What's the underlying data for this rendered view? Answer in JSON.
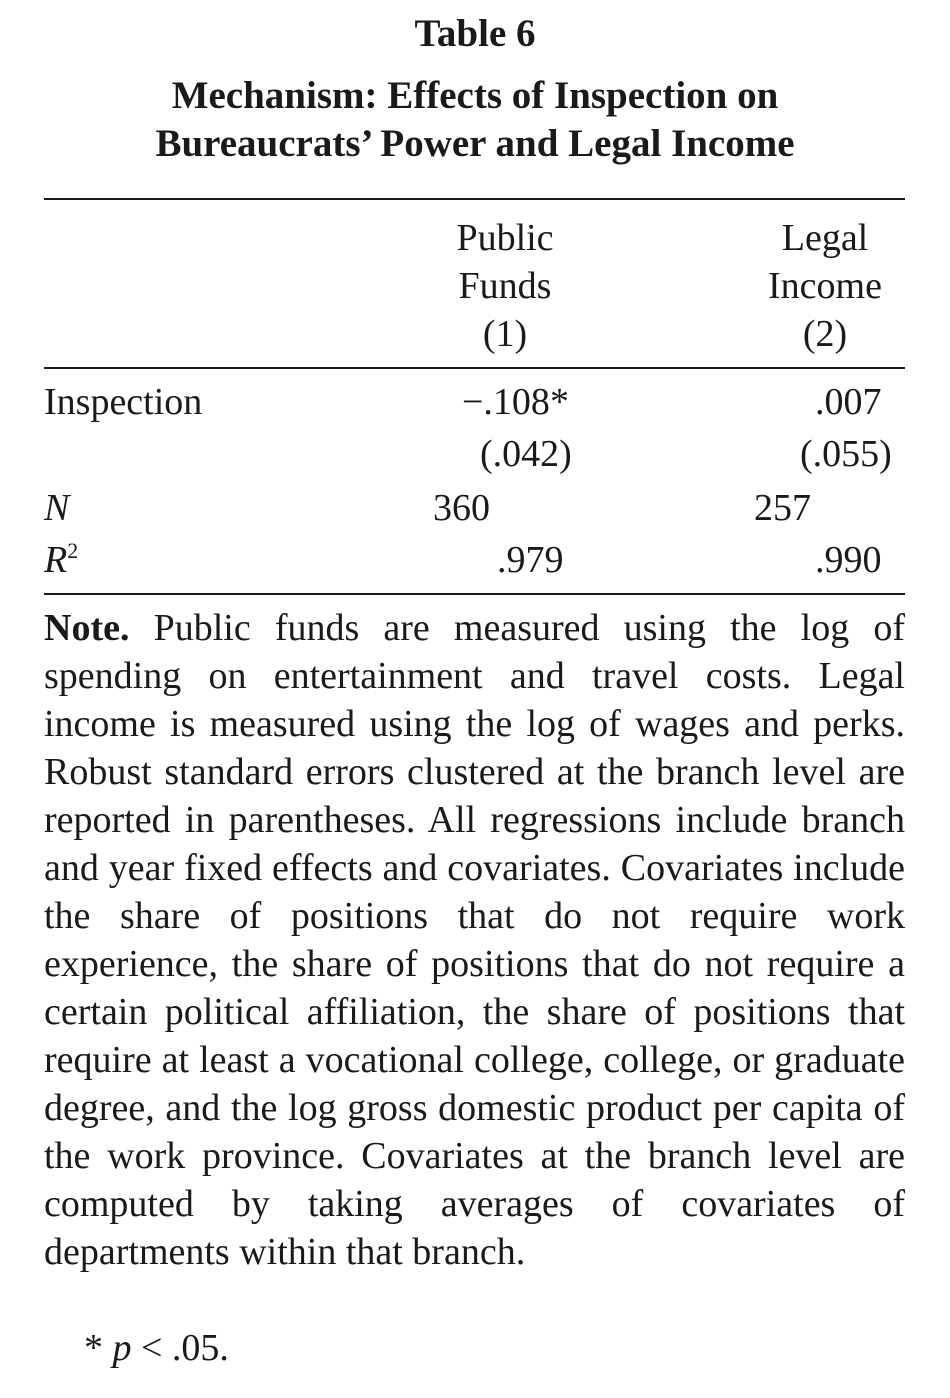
{
  "table": {
    "label": "Table 6",
    "title_line1": "Mechanism: Effects of Inspection on",
    "title_line2": "Bureaucrats’ Power and Legal Income"
  },
  "columns": [
    {
      "line1": "Public",
      "line2": "Funds",
      "number": "(1)"
    },
    {
      "line1": "Legal",
      "line2": "Income",
      "number": "(2)"
    }
  ],
  "rows": {
    "inspection": {
      "label": "Inspection",
      "col1": "−.108",
      "col1_star": "*",
      "col1_se": "(.042)",
      "col2": ".007",
      "col2_se": "(.055)"
    },
    "n": {
      "label": "N",
      "col1": "360",
      "col2": "257"
    },
    "r2": {
      "label": "R",
      "label_sup": "2",
      "col1": ".979",
      "col2": ".990"
    }
  },
  "note": {
    "lead": "Note.",
    "text": "Public funds are measured using the log of spending on entertainment and travel costs. Legal income is measured using the log of wages and perks. Robust standard errors clustered at the branch level are reported in parentheses. All regressions include branch and year fixed effects and covariates. Covariates include the share of positions that do not require work experience, the share of positions that do not require a certain political affiliation, the share of positions that require at least a vocational college, college, or graduate degree, and the log gross domestic product per capita of the work province. Covariates at the branch level are computed by taking averages of covariates of departments within that branch."
  },
  "significance": {
    "star": "*",
    "var": "p",
    "text": "< .05."
  }
}
